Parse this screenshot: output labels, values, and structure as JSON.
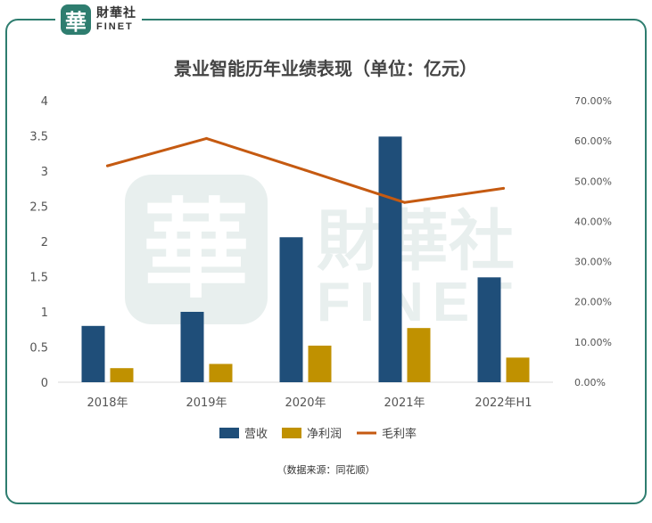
{
  "header": {
    "logo_cn": "財華社",
    "logo_en": "FINET",
    "logo_seal": "華"
  },
  "chart_data": {
    "type": "bar",
    "title": "景业智能历年业绩表现（单位：亿元）",
    "categories": [
      "2018年",
      "2019年",
      "2020年",
      "2021年",
      "2022年H1"
    ],
    "series": [
      {
        "name": "营收",
        "type": "bar",
        "axis": "left",
        "color": "#1f4e79",
        "values": [
          0.8,
          1.0,
          2.06,
          3.49,
          1.49
        ]
      },
      {
        "name": "净利润",
        "type": "bar",
        "axis": "left",
        "color": "#c09100",
        "values": [
          0.2,
          0.26,
          0.52,
          0.77,
          0.35
        ]
      },
      {
        "name": "毛利率",
        "type": "line",
        "axis": "right",
        "color": "#c55a11",
        "values": [
          0.538,
          0.606,
          0.527,
          0.447,
          0.482
        ]
      }
    ],
    "ylim": [
      0,
      4
    ],
    "y_ticks": [
      "0",
      "0.5",
      "1",
      "1.5",
      "2",
      "2.5",
      "3",
      "3.5",
      "4"
    ],
    "y2lim": [
      0,
      0.7
    ],
    "y2_ticks": [
      "0.00%",
      "10.00%",
      "20.00%",
      "30.00%",
      "40.00%",
      "50.00%",
      "60.00%",
      "70.00%"
    ],
    "grid": false,
    "legend_position": "bottom"
  },
  "footer": {
    "source": "（数据来源：同花顺）"
  }
}
